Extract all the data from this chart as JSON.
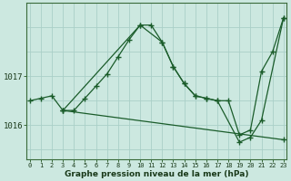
{
  "xlabel": "Graphe pression niveau de la mer (hPa)",
  "background_color": "#cce8e0",
  "grid_color": "#aacfc8",
  "line_color": "#1a5c2a",
  "hours": [
    0,
    1,
    2,
    3,
    4,
    5,
    6,
    7,
    8,
    9,
    10,
    11,
    12,
    13,
    14,
    15,
    16,
    17,
    18,
    19,
    20,
    21,
    22,
    23
  ],
  "series1_pts": [
    [
      0,
      1016.5
    ],
    [
      1,
      1016.55
    ],
    [
      2,
      1016.6
    ],
    [
      3,
      1016.3
    ],
    [
      4,
      1016.3
    ],
    [
      5,
      1016.55
    ],
    [
      6,
      1016.8
    ],
    [
      7,
      1017.05
    ],
    [
      8,
      1017.4
    ],
    [
      9,
      1017.75
    ],
    [
      10,
      1018.05
    ],
    [
      11,
      1018.05
    ],
    [
      12,
      1017.7
    ],
    [
      13,
      1017.2
    ],
    [
      14,
      1016.85
    ],
    [
      15,
      1016.6
    ],
    [
      16,
      1016.55
    ],
    [
      17,
      1016.5
    ],
    [
      18,
      1016.5
    ],
    [
      19,
      1015.8
    ],
    [
      20,
      1015.9
    ],
    [
      21,
      1017.1
    ],
    [
      22,
      1017.5
    ],
    [
      23,
      1018.2
    ]
  ],
  "series2_pts": [
    [
      3,
      1016.3
    ],
    [
      10,
      1018.05
    ],
    [
      12,
      1017.7
    ],
    [
      13,
      1017.2
    ],
    [
      14,
      1016.85
    ],
    [
      15,
      1016.6
    ],
    [
      16,
      1016.55
    ],
    [
      17,
      1016.5
    ],
    [
      19,
      1015.65
    ],
    [
      20,
      1015.75
    ],
    [
      21,
      1016.1
    ],
    [
      23,
      1018.2
    ]
  ],
  "series3_pts": [
    [
      3,
      1016.3
    ],
    [
      23,
      1015.7
    ]
  ],
  "ylim": [
    1015.3,
    1018.5
  ],
  "ytick_vals": [
    1016,
    1017
  ],
  "ytick_labels": [
    "1016",
    "1017"
  ],
  "xlim": [
    -0.3,
    23.3
  ]
}
